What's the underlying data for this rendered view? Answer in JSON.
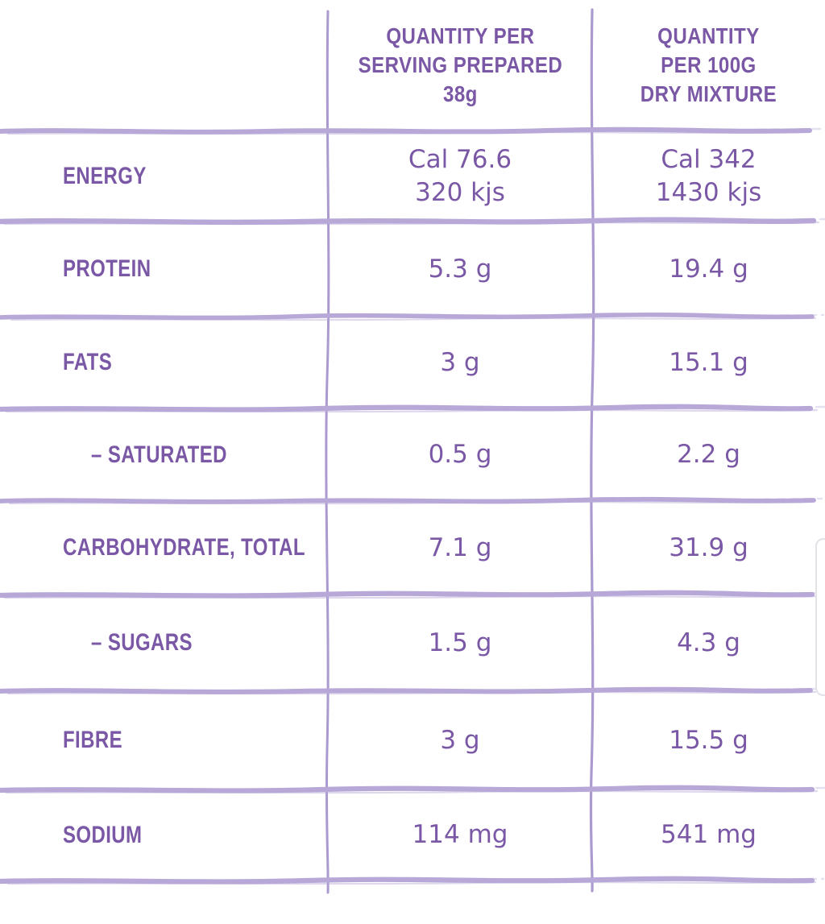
{
  "colors": {
    "text": "#7a58a6",
    "line": "#b7a8d8",
    "vline": "#ab9ad0",
    "handle_border": "#e2e2e7",
    "bg": "#ffffff"
  },
  "table": {
    "header": {
      "per_serving_lines": [
        "QUANTITY PER",
        "SERVING PREPARED",
        "38g"
      ],
      "per_100g_lines": [
        "QUANTITY",
        "PER 100G",
        "DRY MIXTURE"
      ]
    },
    "rows": [
      {
        "label": "ENERGY",
        "indent": false,
        "per_serving_lines": [
          "Cal 76.6",
          "320 kjs"
        ],
        "per_100g_lines": [
          "Cal 342",
          "1430 kjs"
        ]
      },
      {
        "label": "PROTEIN",
        "indent": false,
        "per_serving_lines": [
          "5.3 g"
        ],
        "per_100g_lines": [
          "19.4 g"
        ]
      },
      {
        "label": "FATS",
        "indent": false,
        "per_serving_lines": [
          "3 g"
        ],
        "per_100g_lines": [
          "15.1 g"
        ]
      },
      {
        "label": "– SATURATED",
        "indent": true,
        "per_serving_lines": [
          "0.5 g"
        ],
        "per_100g_lines": [
          "2.2 g"
        ]
      },
      {
        "label": "CARBOHYDRATE, TOTAL",
        "indent": false,
        "per_serving_lines": [
          "7.1 g"
        ],
        "per_100g_lines": [
          "31.9 g"
        ]
      },
      {
        "label": "– SUGARS",
        "indent": true,
        "per_serving_lines": [
          "1.5 g"
        ],
        "per_100g_lines": [
          "4.3 g"
        ]
      },
      {
        "label": "FIBRE",
        "indent": false,
        "per_serving_lines": [
          "3 g"
        ],
        "per_100g_lines": [
          "15.5 g"
        ]
      },
      {
        "label": "SODIUM",
        "indent": false,
        "per_serving_lines": [
          "114 mg"
        ],
        "per_100g_lines": [
          "541 mg"
        ]
      }
    ]
  }
}
